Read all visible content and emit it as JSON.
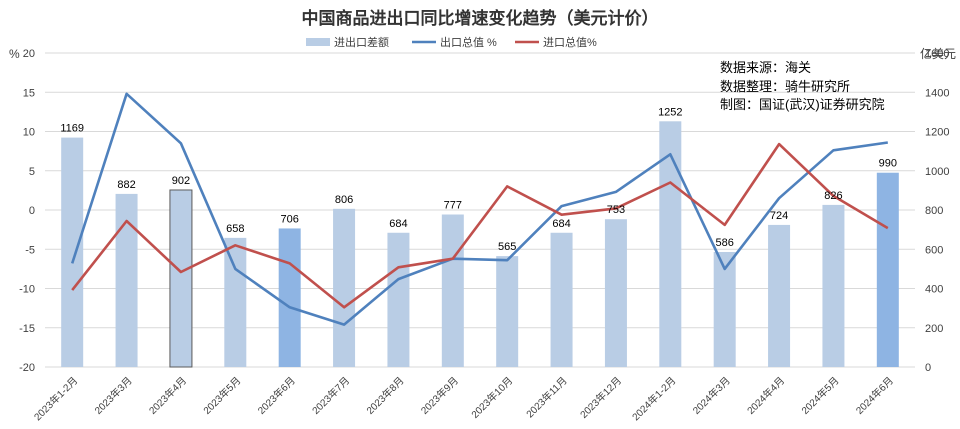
{
  "chart_data": {
    "type": "bar",
    "title": "中国商品进出口同比增速变化趋势（美元计价）",
    "left_unit": "%",
    "right_unit": "亿美元",
    "categories": [
      "2023年1-2月",
      "2023年3月",
      "2023年4月",
      "2023年5月",
      "2023年6月",
      "2023年7月",
      "2023年8月",
      "2023年9月",
      "2023年10月",
      "2023年11月",
      "2023年12月",
      "2024年1-2月",
      "2024年3月",
      "2024年4月",
      "2024年5月",
      "2024年6月"
    ],
    "y_left": {
      "min": -20,
      "max": 20,
      "step": 5,
      "ticks": [
        "20",
        "15",
        "10",
        "5",
        "0",
        "-5",
        "-10",
        "-15",
        "-20"
      ]
    },
    "y_right": {
      "min": 0,
      "max": 1600,
      "step": 200,
      "ticks": [
        "1600",
        "1400",
        "1200",
        "1000",
        "800",
        "600",
        "400",
        "200",
        "0"
      ]
    },
    "legend_position": "top-center",
    "gridlines": true,
    "series": [
      {
        "name": "进出口差额",
        "kind": "bar",
        "axis": "right",
        "color": "#b9cde5",
        "highlight_color": "#8eb4e3",
        "highlight_indices": [
          4,
          15
        ],
        "values": [
          1169,
          882,
          902,
          658,
          706,
          806,
          684,
          777,
          565,
          684,
          753,
          1252,
          586,
          724,
          826,
          990
        ],
        "labels": [
          "1169",
          "882",
          "902",
          "658",
          "706",
          "806",
          "684",
          "777",
          "565",
          "684",
          "753",
          "1252",
          "586",
          "724",
          "826",
          "990"
        ]
      },
      {
        "name": "出口总值 %",
        "kind": "line",
        "axis": "left",
        "color": "#4f81bd",
        "values": [
          -6.8,
          14.8,
          8.5,
          -7.5,
          -12.4,
          -14.6,
          -8.8,
          -6.2,
          -6.4,
          0.5,
          2.3,
          7.1,
          -7.5,
          1.5,
          7.6,
          8.6
        ]
      },
      {
        "name": "进口总值%",
        "kind": "line",
        "axis": "left",
        "color": "#c0504d",
        "values": [
          -10.2,
          -1.4,
          -7.9,
          -4.5,
          -6.8,
          -12.4,
          -7.3,
          -6.2,
          3.0,
          -0.6,
          0.2,
          3.5,
          -1.9,
          8.4,
          1.8,
          -2.3
        ]
      }
    ],
    "annotations": [
      "数据来源：海关",
      "数据整理：骑牛研究所",
      "制图：国证(武汉)证券研究院"
    ]
  }
}
